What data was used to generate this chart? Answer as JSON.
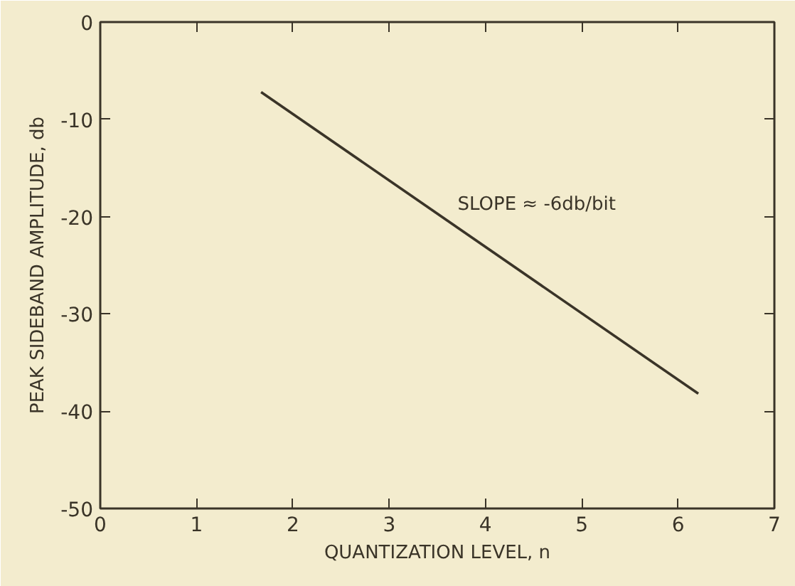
{
  "chart_data": {
    "type": "line",
    "xlabel": "QUANTIZATION LEVEL, n",
    "ylabel": "PEAK SIDEBAND AMPLITUDE, db",
    "x": [
      1.67,
      6.21
    ],
    "series": [
      {
        "color": "#3a3428",
        "values": [
          -7.2,
          -38.2
        ]
      }
    ],
    "xlim": [
      0,
      7
    ],
    "xticks": [
      0,
      1,
      2,
      3,
      4,
      5,
      6,
      7
    ],
    "ylim": [
      -50,
      0
    ],
    "yticks": [
      -50,
      -40,
      -30,
      -20,
      -10,
      0
    ],
    "grid": false,
    "marker": "none",
    "line_style": "solid",
    "annotations": [
      "SLOPE ≈ -6db/bit"
    ]
  }
}
